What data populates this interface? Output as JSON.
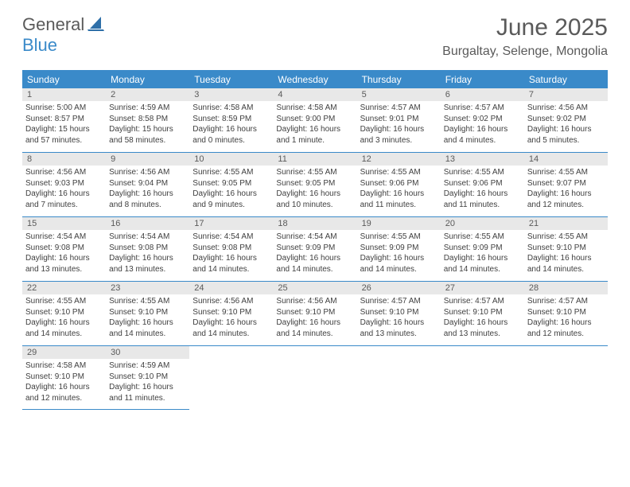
{
  "brand": {
    "general": "General",
    "blue": "Blue"
  },
  "title": "June 2025",
  "location": "Burgaltay, Selenge, Mongolia",
  "colors": {
    "accent": "#3a8ac9",
    "header_bg": "#3a8ac9",
    "header_text": "#ffffff",
    "daynum_bg": "#e8e8e8",
    "text": "#404040",
    "title_text": "#5a5a5a"
  },
  "day_names": [
    "Sunday",
    "Monday",
    "Tuesday",
    "Wednesday",
    "Thursday",
    "Friday",
    "Saturday"
  ],
  "weeks": [
    [
      {
        "n": "1",
        "sunrise": "5:00 AM",
        "sunset": "8:57 PM",
        "daylight": "15 hours and 57 minutes."
      },
      {
        "n": "2",
        "sunrise": "4:59 AM",
        "sunset": "8:58 PM",
        "daylight": "15 hours and 58 minutes."
      },
      {
        "n": "3",
        "sunrise": "4:58 AM",
        "sunset": "8:59 PM",
        "daylight": "16 hours and 0 minutes."
      },
      {
        "n": "4",
        "sunrise": "4:58 AM",
        "sunset": "9:00 PM",
        "daylight": "16 hours and 1 minute."
      },
      {
        "n": "5",
        "sunrise": "4:57 AM",
        "sunset": "9:01 PM",
        "daylight": "16 hours and 3 minutes."
      },
      {
        "n": "6",
        "sunrise": "4:57 AM",
        "sunset": "9:02 PM",
        "daylight": "16 hours and 4 minutes."
      },
      {
        "n": "7",
        "sunrise": "4:56 AM",
        "sunset": "9:02 PM",
        "daylight": "16 hours and 5 minutes."
      }
    ],
    [
      {
        "n": "8",
        "sunrise": "4:56 AM",
        "sunset": "9:03 PM",
        "daylight": "16 hours and 7 minutes."
      },
      {
        "n": "9",
        "sunrise": "4:56 AM",
        "sunset": "9:04 PM",
        "daylight": "16 hours and 8 minutes."
      },
      {
        "n": "10",
        "sunrise": "4:55 AM",
        "sunset": "9:05 PM",
        "daylight": "16 hours and 9 minutes."
      },
      {
        "n": "11",
        "sunrise": "4:55 AM",
        "sunset": "9:05 PM",
        "daylight": "16 hours and 10 minutes."
      },
      {
        "n": "12",
        "sunrise": "4:55 AM",
        "sunset": "9:06 PM",
        "daylight": "16 hours and 11 minutes."
      },
      {
        "n": "13",
        "sunrise": "4:55 AM",
        "sunset": "9:06 PM",
        "daylight": "16 hours and 11 minutes."
      },
      {
        "n": "14",
        "sunrise": "4:55 AM",
        "sunset": "9:07 PM",
        "daylight": "16 hours and 12 minutes."
      }
    ],
    [
      {
        "n": "15",
        "sunrise": "4:54 AM",
        "sunset": "9:08 PM",
        "daylight": "16 hours and 13 minutes."
      },
      {
        "n": "16",
        "sunrise": "4:54 AM",
        "sunset": "9:08 PM",
        "daylight": "16 hours and 13 minutes."
      },
      {
        "n": "17",
        "sunrise": "4:54 AM",
        "sunset": "9:08 PM",
        "daylight": "16 hours and 14 minutes."
      },
      {
        "n": "18",
        "sunrise": "4:54 AM",
        "sunset": "9:09 PM",
        "daylight": "16 hours and 14 minutes."
      },
      {
        "n": "19",
        "sunrise": "4:55 AM",
        "sunset": "9:09 PM",
        "daylight": "16 hours and 14 minutes."
      },
      {
        "n": "20",
        "sunrise": "4:55 AM",
        "sunset": "9:09 PM",
        "daylight": "16 hours and 14 minutes."
      },
      {
        "n": "21",
        "sunrise": "4:55 AM",
        "sunset": "9:10 PM",
        "daylight": "16 hours and 14 minutes."
      }
    ],
    [
      {
        "n": "22",
        "sunrise": "4:55 AM",
        "sunset": "9:10 PM",
        "daylight": "16 hours and 14 minutes."
      },
      {
        "n": "23",
        "sunrise": "4:55 AM",
        "sunset": "9:10 PM",
        "daylight": "16 hours and 14 minutes."
      },
      {
        "n": "24",
        "sunrise": "4:56 AM",
        "sunset": "9:10 PM",
        "daylight": "16 hours and 14 minutes."
      },
      {
        "n": "25",
        "sunrise": "4:56 AM",
        "sunset": "9:10 PM",
        "daylight": "16 hours and 14 minutes."
      },
      {
        "n": "26",
        "sunrise": "4:57 AM",
        "sunset": "9:10 PM",
        "daylight": "16 hours and 13 minutes."
      },
      {
        "n": "27",
        "sunrise": "4:57 AM",
        "sunset": "9:10 PM",
        "daylight": "16 hours and 13 minutes."
      },
      {
        "n": "28",
        "sunrise": "4:57 AM",
        "sunset": "9:10 PM",
        "daylight": "16 hours and 12 minutes."
      }
    ],
    [
      {
        "n": "29",
        "sunrise": "4:58 AM",
        "sunset": "9:10 PM",
        "daylight": "16 hours and 12 minutes."
      },
      {
        "n": "30",
        "sunrise": "4:59 AM",
        "sunset": "9:10 PM",
        "daylight": "16 hours and 11 minutes."
      },
      null,
      null,
      null,
      null,
      null
    ]
  ],
  "labels": {
    "sunrise": "Sunrise:",
    "sunset": "Sunset:",
    "daylight": "Daylight:"
  }
}
